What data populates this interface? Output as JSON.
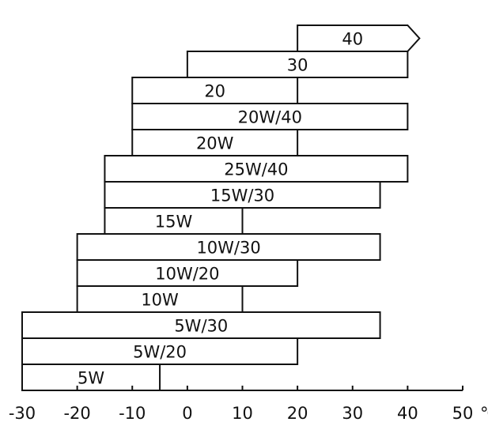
{
  "chart_data": {
    "type": "bar",
    "orientation": "horizontal-range",
    "title": "",
    "xlabel": "",
    "ylabel": "",
    "x_unit": "℃",
    "xlim": [
      -30,
      50
    ],
    "x_ticks": [
      -30,
      -20,
      -10,
      0,
      10,
      20,
      30,
      40,
      50
    ],
    "grid": false,
    "series": [
      {
        "label": "5W",
        "start": -30,
        "end": -5
      },
      {
        "label": "5W/20",
        "start": -30,
        "end": 20
      },
      {
        "label": "5W/30",
        "start": -30,
        "end": 35
      },
      {
        "label": "10W",
        "start": -20,
        "end": 10
      },
      {
        "label": "10W/20",
        "start": -20,
        "end": 20
      },
      {
        "label": "10W/30",
        "start": -20,
        "end": 35
      },
      {
        "label": "15W",
        "start": -15,
        "end": 10
      },
      {
        "label": "15W/30",
        "start": -15,
        "end": 35
      },
      {
        "label": "25W/40",
        "start": -15,
        "end": 40
      },
      {
        "label": "20W",
        "start": -10,
        "end": 20
      },
      {
        "label": "20W/40",
        "start": -10,
        "end": 40
      },
      {
        "label": "20",
        "start": -10,
        "end": 20
      },
      {
        "label": "30",
        "start": 0,
        "end": 40
      },
      {
        "label": "40",
        "start": 20,
        "end": 40,
        "open_ended": true
      }
    ]
  }
}
